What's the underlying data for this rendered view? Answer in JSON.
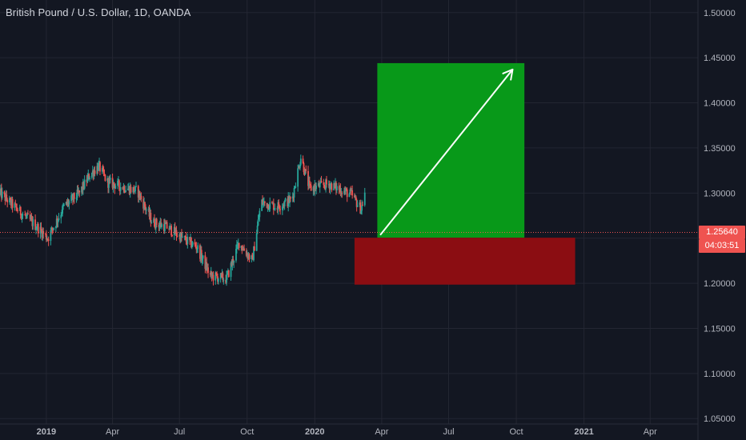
{
  "header": {
    "title": "British Pound / U.S. Dollar, 1D, OANDA"
  },
  "price_scale": {
    "ticks": [
      "1.50000",
      "1.45000",
      "1.40000",
      "1.35000",
      "1.30000",
      "1.25000",
      "1.20000",
      "1.15000",
      "1.10000",
      "1.05000"
    ],
    "last_price_label": "1.25640",
    "countdown_label": "04:03:51",
    "tag_color": "#ef5350"
  },
  "chart_data": {
    "type": "candlestick",
    "x_ticks": [
      {
        "date": "2019-01-01",
        "label": "2019"
      },
      {
        "date": "2019-04-01",
        "label": "Apr"
      },
      {
        "date": "2019-07-01",
        "label": "Jul"
      },
      {
        "date": "2019-10-01",
        "label": "Oct"
      },
      {
        "date": "2020-01-01",
        "label": "2020"
      },
      {
        "date": "2020-04-01",
        "label": "Apr"
      },
      {
        "date": "2020-07-01",
        "label": "Jul"
      },
      {
        "date": "2020-10-01",
        "label": "Oct"
      },
      {
        "date": "2021-01-01",
        "label": "2021"
      },
      {
        "date": "2021-04-01",
        "label": "Apr"
      }
    ],
    "xlim": [
      "2018-10-30",
      "2021-06-05"
    ],
    "ylim": [
      1.044,
      1.514
    ],
    "y_ticks": [
      1.5,
      1.45,
      1.4,
      1.35,
      1.3,
      1.25,
      1.2,
      1.15,
      1.1,
      1.05
    ],
    "last_price": 1.2564,
    "up_color": "#26a69a",
    "down_color": "#ef5350",
    "anchors": [
      {
        "date": "2018-10-30",
        "price": 1.3
      },
      {
        "date": "2018-11-25",
        "price": 1.28
      },
      {
        "date": "2018-12-20",
        "price": 1.262
      },
      {
        "date": "2019-01-03",
        "price": 1.25
      },
      {
        "date": "2019-01-25",
        "price": 1.285
      },
      {
        "date": "2019-02-15",
        "price": 1.3
      },
      {
        "date": "2019-03-01",
        "price": 1.32
      },
      {
        "date": "2019-03-13",
        "price": 1.33
      },
      {
        "date": "2019-03-25",
        "price": 1.312
      },
      {
        "date": "2019-04-10",
        "price": 1.308
      },
      {
        "date": "2019-05-05",
        "price": 1.302
      },
      {
        "date": "2019-05-25",
        "price": 1.268
      },
      {
        "date": "2019-06-15",
        "price": 1.262
      },
      {
        "date": "2019-07-05",
        "price": 1.25
      },
      {
        "date": "2019-07-25",
        "price": 1.24
      },
      {
        "date": "2019-08-12",
        "price": 1.208
      },
      {
        "date": "2019-09-03",
        "price": 1.205
      },
      {
        "date": "2019-09-20",
        "price": 1.245
      },
      {
        "date": "2019-10-08",
        "price": 1.225
      },
      {
        "date": "2019-10-20",
        "price": 1.29
      },
      {
        "date": "2019-11-10",
        "price": 1.285
      },
      {
        "date": "2019-12-01",
        "price": 1.293
      },
      {
        "date": "2019-12-13",
        "price": 1.34
      },
      {
        "date": "2019-12-25",
        "price": 1.305
      },
      {
        "date": "2020-01-20",
        "price": 1.31
      },
      {
        "date": "2020-02-20",
        "price": 1.298
      },
      {
        "date": "2020-03-04",
        "price": 1.282
      },
      {
        "date": "2020-03-09",
        "price": 1.3
      }
    ]
  },
  "drawings": {
    "long_position": {
      "target": {
        "from": "2020-03-26",
        "to": "2020-10-12",
        "top": 1.444,
        "bottom": 1.2505,
        "color": "#089919"
      },
      "stop": {
        "from": "2020-02-24",
        "to": "2020-12-20",
        "top": 1.2505,
        "bottom": 1.1985,
        "color": "#8b0d12"
      }
    },
    "arrow": {
      "from_date": "2020-03-30",
      "from_price": 1.2535,
      "to_date": "2020-09-26",
      "to_price": 1.437,
      "color": "#ffffff"
    }
  }
}
